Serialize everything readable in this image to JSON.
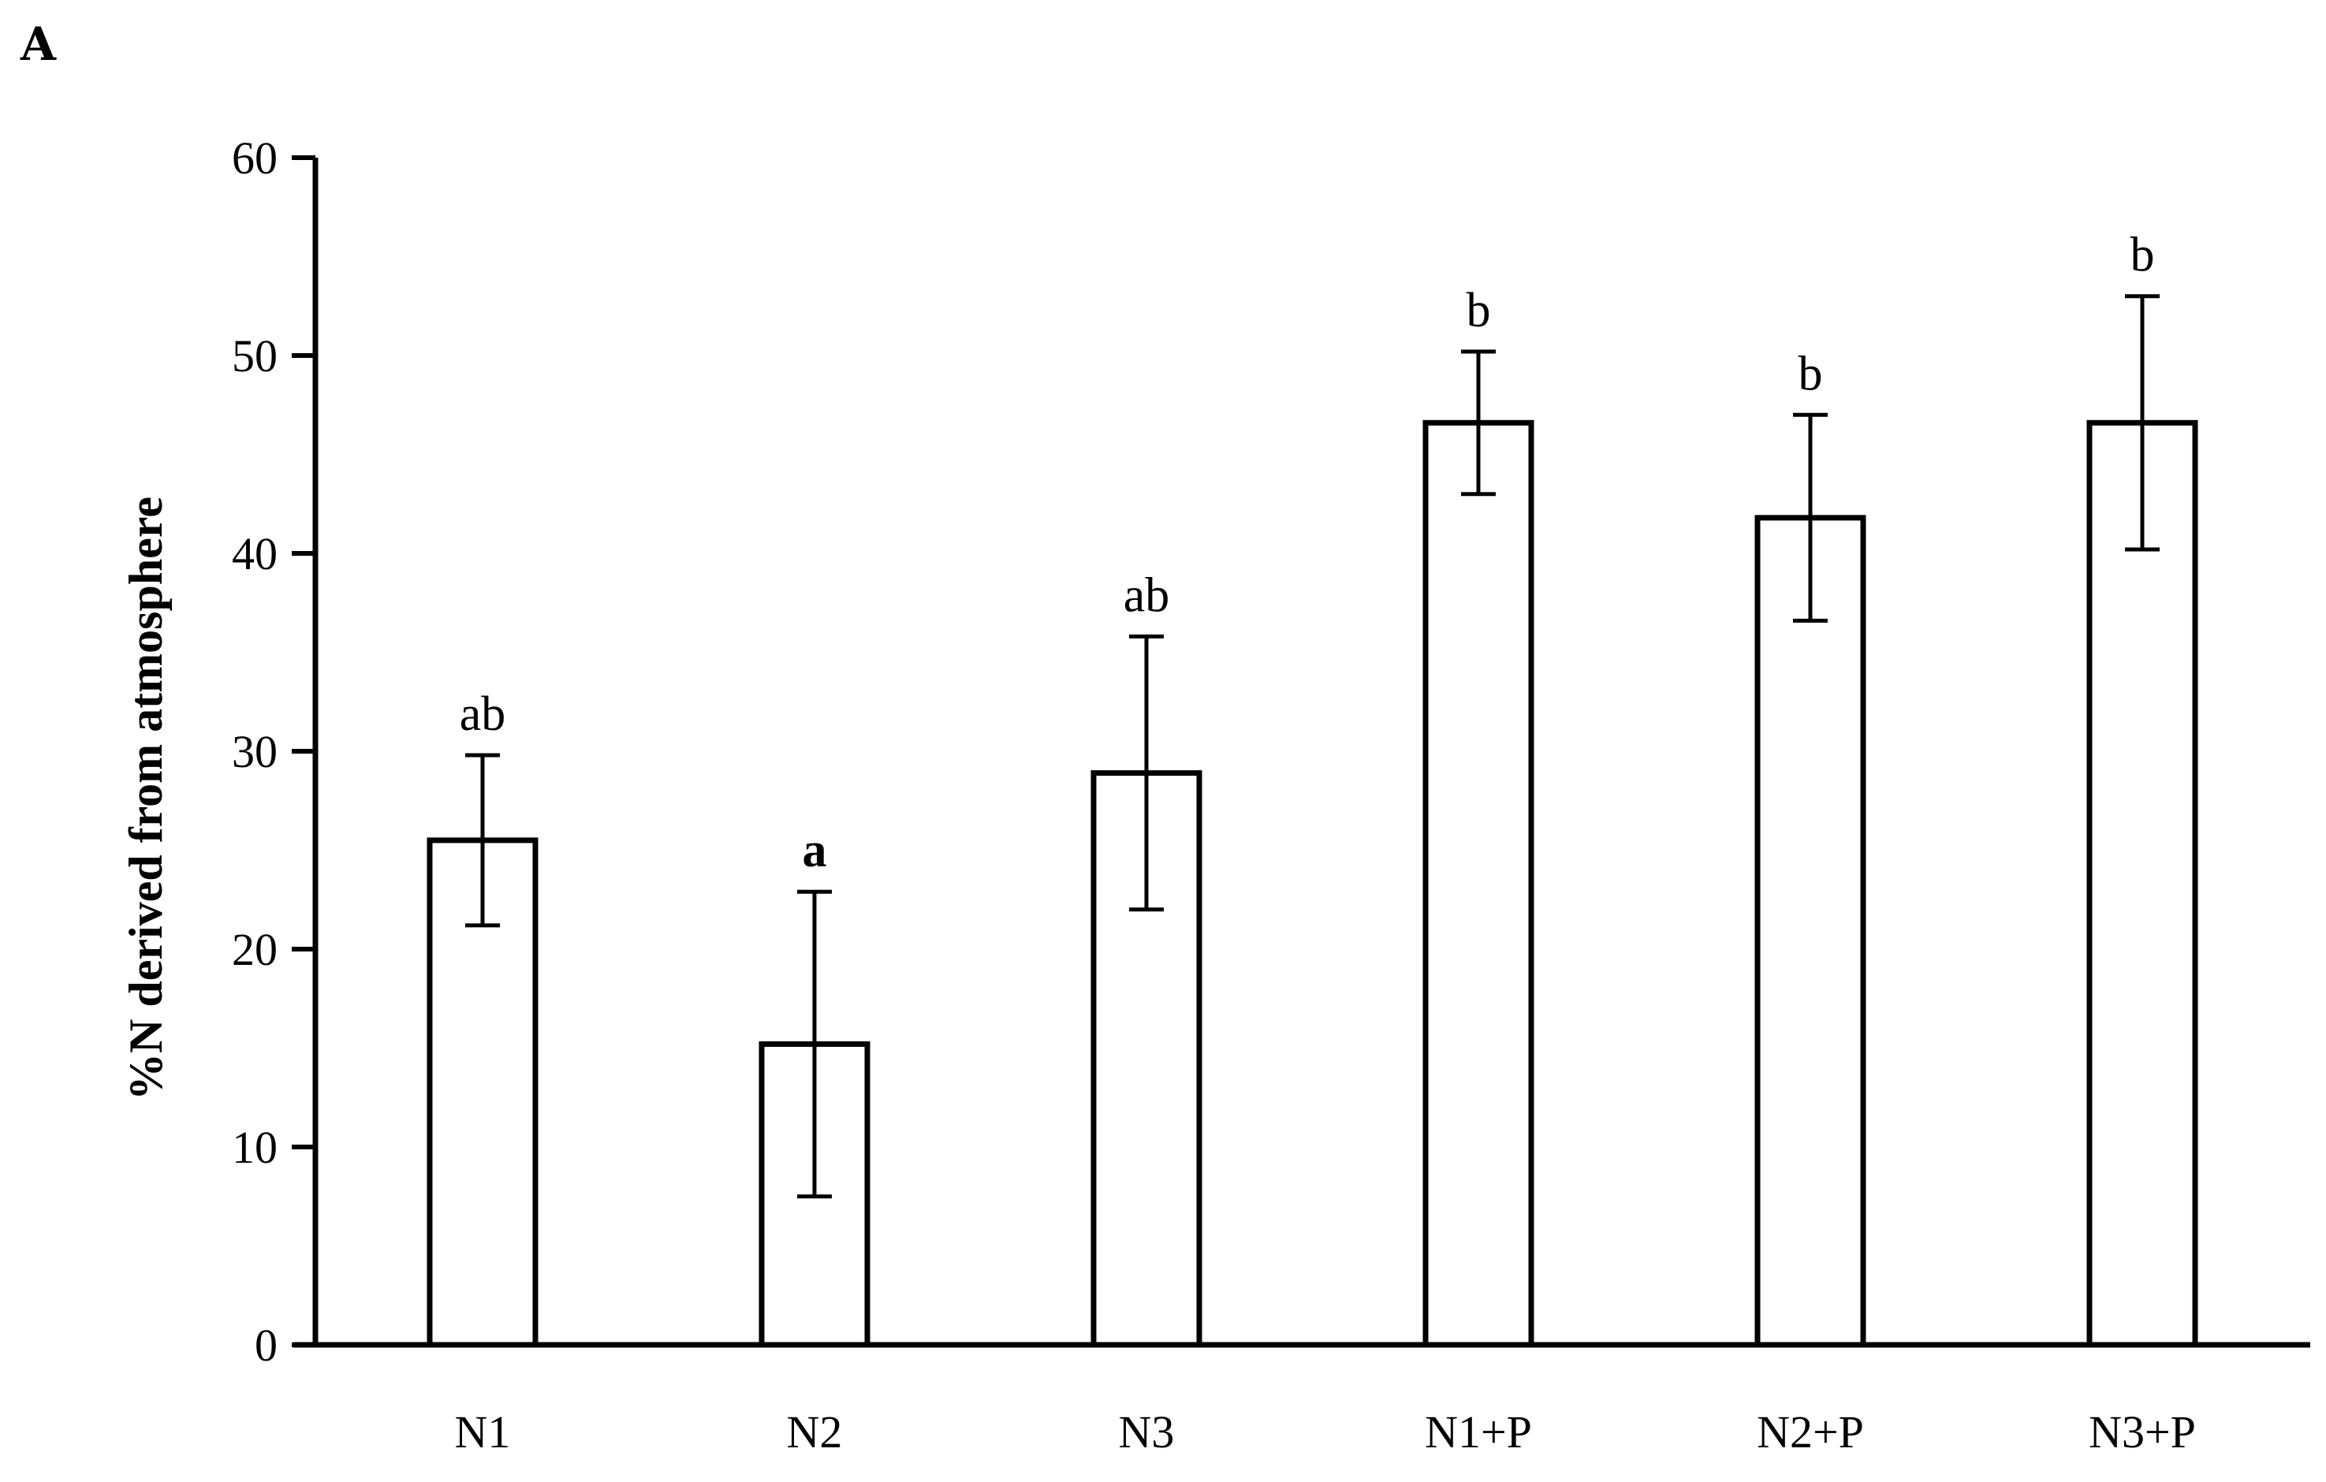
{
  "panel_label": "A",
  "chart_data": {
    "type": "bar",
    "title": "",
    "xlabel": "",
    "ylabel": "%N derived from atmosphere",
    "categories": [
      "N1",
      "N2",
      "N3",
      "N1+P",
      "N2+P",
      "N3+P"
    ],
    "values": [
      25.5,
      15.2,
      28.9,
      46.6,
      41.8,
      46.6
    ],
    "error_low": [
      21.2,
      7.5,
      22.0,
      43.0,
      36.6,
      40.2
    ],
    "error_high": [
      29.8,
      22.9,
      35.8,
      50.2,
      47.0,
      53.0
    ],
    "significance_labels": [
      "ab",
      "a",
      "ab",
      "b",
      "b",
      "b"
    ],
    "ylim": [
      0,
      60
    ],
    "yticks": [
      0,
      10,
      20,
      30,
      40,
      50,
      60
    ],
    "grid": false,
    "bar_fill": "#ffffff",
    "bar_stroke": "#000000"
  }
}
